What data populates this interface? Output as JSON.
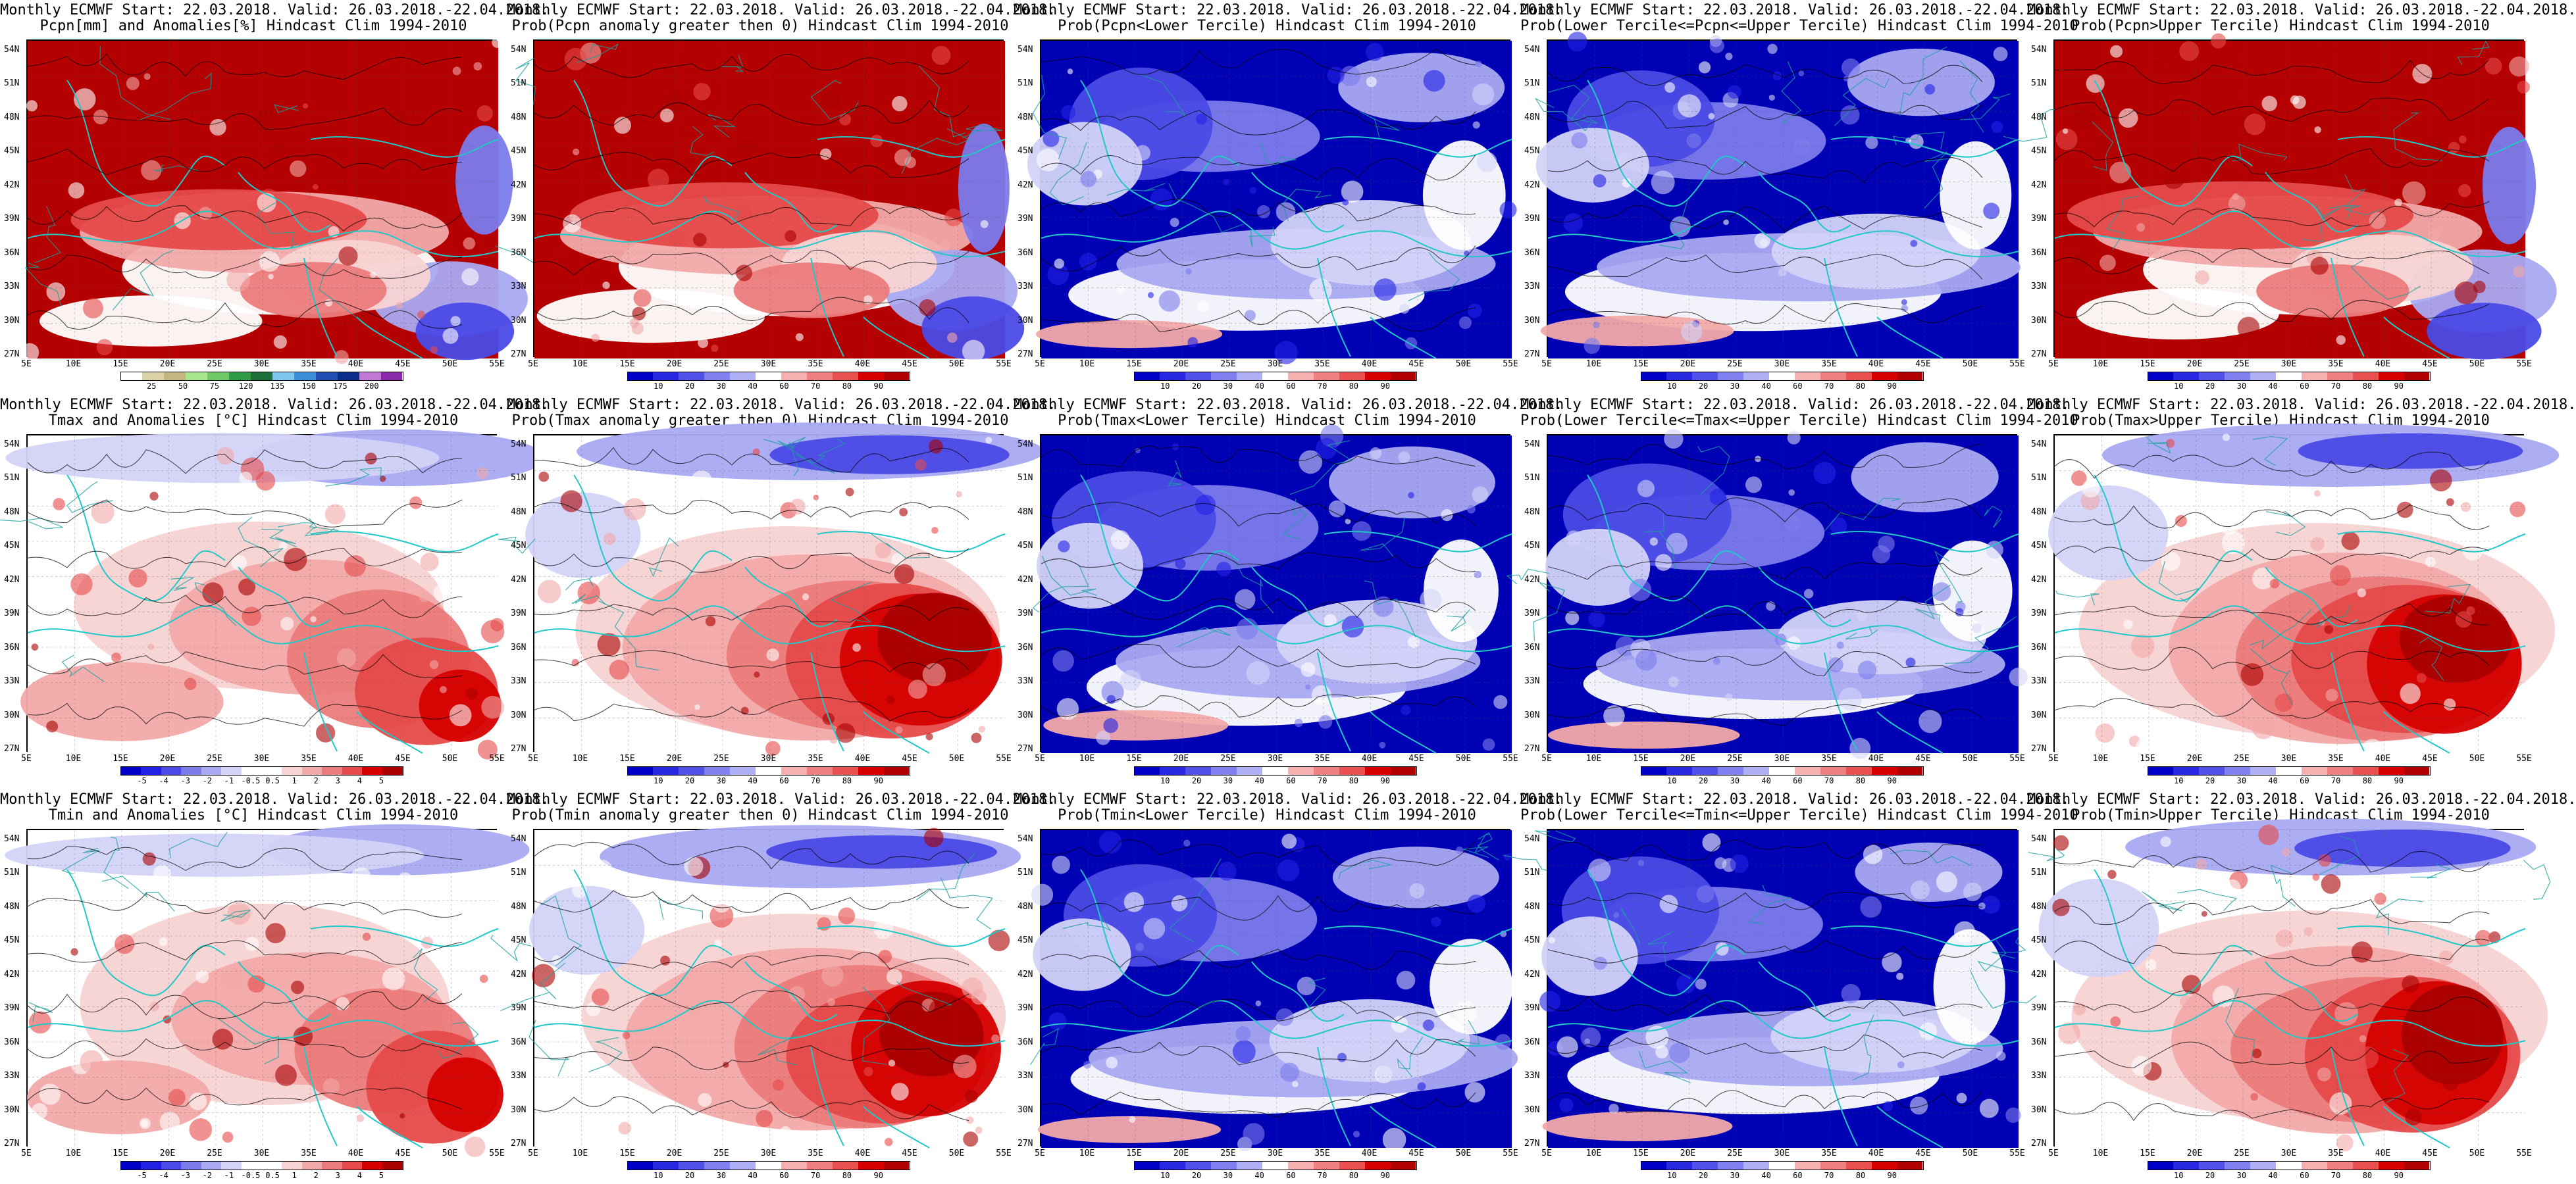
{
  "palettes": {
    "prec": [
      "#ffffff",
      "#dcd3a8",
      "#c4b880",
      "#a9e58a",
      "#6fc866",
      "#2f9b46",
      "#1e6e3c",
      "#7ec6ee",
      "#3b8fd8",
      "#1e4fb0",
      "#0b2c8a",
      "#c07ad6",
      "#8a2aa8"
    ],
    "diverging": [
      "#0000c8",
      "#2222e6",
      "#4a4ae6",
      "#7b7bec",
      "#a9a9f2",
      "#d3d3f8",
      "#ffffff",
      "#ffffff",
      "#f8d3d3",
      "#f2a9a9",
      "#ec7b7b",
      "#e64a4a",
      "#d60000",
      "#aa0000"
    ],
    "prob": [
      "#0000c8",
      "#2828e0",
      "#5252ea",
      "#8080f0",
      "#b0b0f6",
      "#ffffff",
      "#f6b0b0",
      "#f08080",
      "#ea5050",
      "#d60000",
      "#b00000"
    ]
  },
  "colorbars": {
    "prec": [
      "25",
      "50",
      "75",
      "120",
      "135",
      "150",
      "175",
      "200"
    ],
    "temp": [
      "-5",
      "-4",
      "-3",
      "-2",
      "-1",
      "-0.5",
      "0.5",
      "1",
      "2",
      "3",
      "4",
      "5"
    ],
    "prob": [
      "10",
      "20",
      "30",
      "40",
      "60",
      "70",
      "80",
      "90"
    ]
  },
  "axes": {
    "lon_labels": [
      "5E",
      "10E",
      "15E",
      "20E",
      "25E",
      "30E",
      "35E",
      "40E",
      "45E",
      "50E",
      "55E"
    ],
    "lat_labels": [
      "54N",
      "51N",
      "48N",
      "45N",
      "42N",
      "39N",
      "36N",
      "33N",
      "30N",
      "27N"
    ]
  },
  "panels": [
    {
      "id": "pcpn-anom",
      "title_line1": "Monthly ECMWF Start: 22.03.2018. Valid: 26.03.2018.-22.04.2018.",
      "title_line2": "Pcpn[mm] and Anomalies[%] Hindcast Clim 1994-2010",
      "fill": "red-dominant",
      "colorbar": "prec"
    },
    {
      "id": "pcpn-prob-gt0",
      "title_line1": "Monthly ECMWF Start: 22.03.2018. Valid: 26.03.2018.-22.04.2018.",
      "title_line2": "Prob(Pcpn anomaly greater then 0) Hindcast Clim 1994-2010",
      "fill": "red-dominant",
      "colorbar": "prob"
    },
    {
      "id": "pcpn-prob-lower",
      "title_line1": "Monthly ECMWF Start: 22.03.2018. Valid: 26.03.2018.-22.04.2018.",
      "title_line2": "Prob(Pcpn<Lower Tercile) Hindcast Clim 1994-2010",
      "fill": "blue-dominant",
      "colorbar": "prob"
    },
    {
      "id": "pcpn-prob-middle",
      "title_line1": "Monthly ECMWF Start: 22.03.2018. Valid: 26.03.2018.-22.04.2018.",
      "title_line2": "Prob(Lower Tercile<=Pcpn<=Upper Tercile) Hindcast Clim 1994-2010",
      "fill": "blue-dominant",
      "colorbar": "prob"
    },
    {
      "id": "pcpn-prob-upper",
      "title_line1": "Monthly ECMWF Start: 22.03.2018. Valid: 26.03.2018.-22.04.2018.",
      "title_line2": "Prob(Pcpn>Upper Tercile) Hindcast Clim 1994-2010",
      "fill": "red-dominant",
      "colorbar": "prob"
    },
    {
      "id": "tmax-anom",
      "title_line1": "Monthly ECMWF Start: 22.03.2018. Valid: 26.03.2018.-22.04.2018.",
      "title_line2": "Tmax and Anomalies [°C] Hindcast Clim 1994-2010",
      "fill": "light-red",
      "colorbar": "temp"
    },
    {
      "id": "tmax-prob-gt0",
      "title_line1": "Monthly ECMWF Start: 22.03.2018. Valid: 26.03.2018.-22.04.2018.",
      "title_line2": "Prob(Tmax anomaly greater then 0) Hindcast Clim 1994-2010",
      "fill": "red-southeast",
      "colorbar": "prob"
    },
    {
      "id": "tmax-prob-lower",
      "title_line1": "Monthly ECMWF Start: 22.03.2018. Valid: 26.03.2018.-22.04.2018.",
      "title_line2": "Prob(Tmax<Lower Tercile) Hindcast Clim 1994-2010",
      "fill": "blue-dominant",
      "colorbar": "prob"
    },
    {
      "id": "tmax-prob-middle",
      "title_line1": "Monthly ECMWF Start: 22.03.2018. Valid: 26.03.2018.-22.04.2018.",
      "title_line2": "Prob(Lower Tercile<=Tmax<=Upper Tercile) Hindcast Clim 1994-2010",
      "fill": "blue-dominant",
      "colorbar": "prob"
    },
    {
      "id": "tmax-prob-upper",
      "title_line1": "Monthly ECMWF Start: 22.03.2018. Valid: 26.03.2018.-22.04.2018.",
      "title_line2": "Prob(Tmax>Upper Tercile) Hindcast Clim 1994-2010",
      "fill": "red-southeast",
      "colorbar": "prob"
    },
    {
      "id": "tmin-anom",
      "title_line1": "Monthly ECMWF Start: 22.03.2018. Valid: 26.03.2018.-22.04.2018.",
      "title_line2": "Tmin and Anomalies [°C] Hindcast Clim 1994-2010",
      "fill": "light-red",
      "colorbar": "temp"
    },
    {
      "id": "tmin-prob-gt0",
      "title_line1": "Monthly ECMWF Start: 22.03.2018. Valid: 26.03.2018.-22.04.2018.",
      "title_line2": "Prob(Tmin anomaly greater then 0) Hindcast Clim 1994-2010",
      "fill": "red-southeast",
      "colorbar": "prob"
    },
    {
      "id": "tmin-prob-lower",
      "title_line1": "Monthly ECMWF Start: 22.03.2018. Valid: 26.03.2018.-22.04.2018.",
      "title_line2": "Prob(Tmin<Lower Tercile) Hindcast Clim 1994-2010",
      "fill": "blue-dominant",
      "colorbar": "prob"
    },
    {
      "id": "tmin-prob-middle",
      "title_line1": "Monthly ECMWF Start: 22.03.2018. Valid: 26.03.2018.-22.04.2018.",
      "title_line2": "Prob(Lower Tercile<=Tmin<=Upper Tercile) Hindcast Clim 1994-2010",
      "fill": "blue-dominant",
      "colorbar": "prob"
    },
    {
      "id": "tmin-prob-upper",
      "title_line1": "Monthly ECMWF Start: 22.03.2018. Valid: 26.03.2018.-22.04.2018.",
      "title_line2": "Prob(Tmin>Upper Tercile) Hindcast Clim 1994-2010",
      "fill": "red-southeast",
      "colorbar": "prob"
    }
  ]
}
